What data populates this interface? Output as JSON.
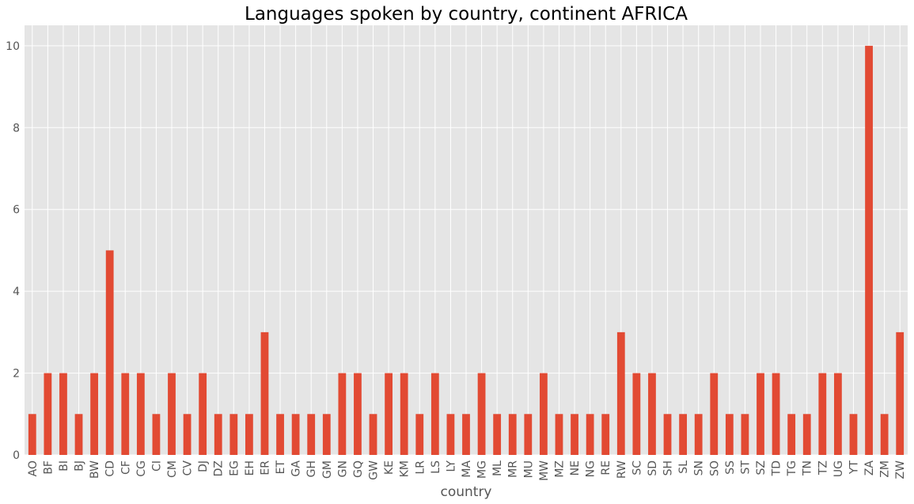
{
  "chart_data": {
    "type": "bar",
    "title": "Languages spoken by country, continent AFRICA",
    "xlabel": "country",
    "ylabel": "",
    "ylim": [
      0,
      10.5
    ],
    "yticks": [
      0,
      2,
      4,
      6,
      8,
      10
    ],
    "grid": true,
    "colors": {
      "bar": "#E24A33",
      "plot_background": "#E5E5E5",
      "grid": "#FFFFFF"
    },
    "categories": [
      "AO",
      "BF",
      "BI",
      "BJ",
      "BW",
      "CD",
      "CF",
      "CG",
      "CI",
      "CM",
      "CV",
      "DJ",
      "DZ",
      "EG",
      "EH",
      "ER",
      "ET",
      "GA",
      "GH",
      "GM",
      "GN",
      "GQ",
      "GW",
      "KE",
      "KM",
      "LR",
      "LS",
      "LY",
      "MA",
      "MG",
      "ML",
      "MR",
      "MU",
      "MW",
      "MZ",
      "NE",
      "NG",
      "RE",
      "RW",
      "SC",
      "SD",
      "SH",
      "SL",
      "SN",
      "SO",
      "SS",
      "ST",
      "SZ",
      "TD",
      "TG",
      "TN",
      "TZ",
      "UG",
      "YT",
      "ZA",
      "ZM",
      "ZW"
    ],
    "values": [
      1,
      2,
      2,
      1,
      2,
      5,
      2,
      2,
      1,
      2,
      1,
      2,
      1,
      1,
      1,
      3,
      1,
      1,
      1,
      1,
      2,
      2,
      1,
      2,
      2,
      1,
      2,
      1,
      1,
      2,
      1,
      1,
      1,
      2,
      1,
      1,
      1,
      1,
      3,
      2,
      2,
      1,
      1,
      1,
      2,
      1,
      1,
      2,
      2,
      1,
      1,
      2,
      2,
      1,
      10,
      1,
      3
    ]
  }
}
